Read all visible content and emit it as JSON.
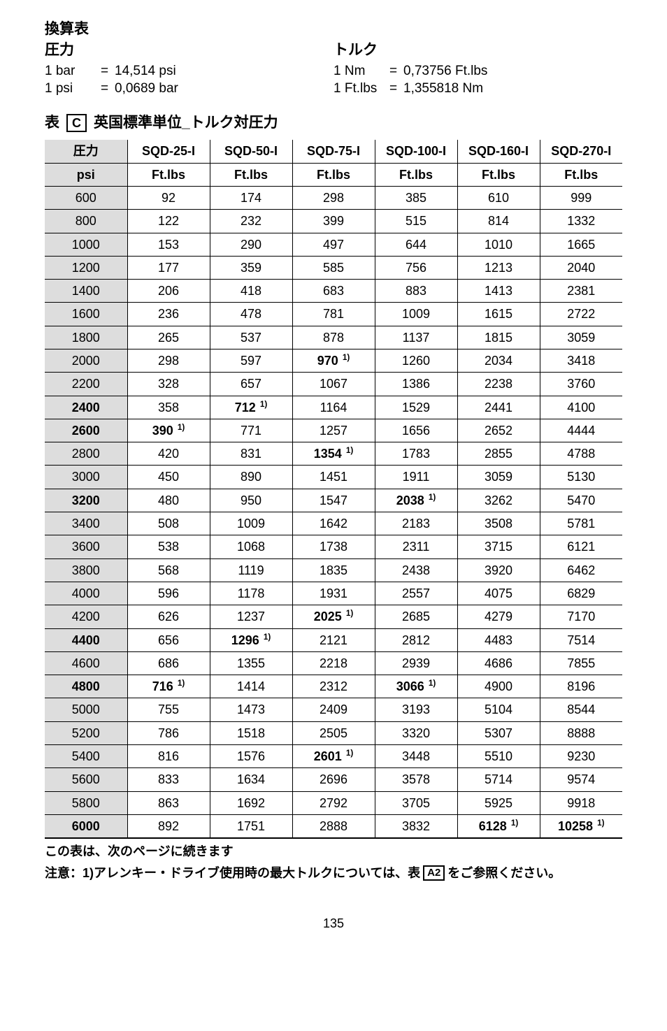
{
  "headings": {
    "conversion_table": "換算表",
    "pressure": "圧力",
    "torque": "トルク"
  },
  "conversions_left": [
    {
      "unit": "1 bar",
      "eq": "=",
      "value": "14,514 psi"
    },
    {
      "unit": "1 psi",
      "eq": "=",
      "value": "0,0689 bar"
    }
  ],
  "conversions_right": [
    {
      "unit": "1 Nm",
      "eq": "=",
      "value": "0,73756 Ft.lbs"
    },
    {
      "unit": "1 Ft.lbs",
      "eq": "=",
      "value": "1,355818 Nm"
    }
  ],
  "table_caption": {
    "prefix": "表",
    "box": "C",
    "suffix": "英国標準単位_トルク対圧力"
  },
  "table": {
    "header1": [
      "圧力",
      "SQD-25-I",
      "SQD-50-I",
      "SQD-75-I",
      "SQD-100-I",
      "SQD-160-I",
      "SQD-270-I"
    ],
    "header2": [
      "psi",
      "Ft.lbs",
      "Ft.lbs",
      "Ft.lbs",
      "Ft.lbs",
      "Ft.lbs",
      "Ft.lbs"
    ],
    "rows": [
      {
        "psi": "600",
        "psi_bold": false,
        "cells": [
          {
            "v": "92"
          },
          {
            "v": "174"
          },
          {
            "v": "298"
          },
          {
            "v": "385"
          },
          {
            "v": "610"
          },
          {
            "v": "999"
          }
        ]
      },
      {
        "psi": "800",
        "psi_bold": false,
        "cells": [
          {
            "v": "122"
          },
          {
            "v": "232"
          },
          {
            "v": "399"
          },
          {
            "v": "515"
          },
          {
            "v": "814"
          },
          {
            "v": "1332"
          }
        ]
      },
      {
        "psi": "1000",
        "psi_bold": false,
        "cells": [
          {
            "v": "153"
          },
          {
            "v": "290"
          },
          {
            "v": "497"
          },
          {
            "v": "644"
          },
          {
            "v": "1010"
          },
          {
            "v": "1665"
          }
        ]
      },
      {
        "psi": "1200",
        "psi_bold": false,
        "cells": [
          {
            "v": "177"
          },
          {
            "v": "359"
          },
          {
            "v": "585"
          },
          {
            "v": "756"
          },
          {
            "v": "1213"
          },
          {
            "v": "2040"
          }
        ]
      },
      {
        "psi": "1400",
        "psi_bold": false,
        "cells": [
          {
            "v": "206"
          },
          {
            "v": "418"
          },
          {
            "v": "683"
          },
          {
            "v": "883"
          },
          {
            "v": "1413"
          },
          {
            "v": "2381"
          }
        ]
      },
      {
        "psi": "1600",
        "psi_bold": false,
        "cells": [
          {
            "v": "236"
          },
          {
            "v": "478"
          },
          {
            "v": "781"
          },
          {
            "v": "1009"
          },
          {
            "v": "1615"
          },
          {
            "v": "2722"
          }
        ]
      },
      {
        "psi": "1800",
        "psi_bold": false,
        "cells": [
          {
            "v": "265"
          },
          {
            "v": "537"
          },
          {
            "v": "878"
          },
          {
            "v": "1137"
          },
          {
            "v": "1815"
          },
          {
            "v": "3059"
          }
        ]
      },
      {
        "psi": "2000",
        "psi_bold": false,
        "cells": [
          {
            "v": "298"
          },
          {
            "v": "597"
          },
          {
            "v": "970",
            "m": true
          },
          {
            "v": "1260"
          },
          {
            "v": "2034"
          },
          {
            "v": "3418"
          }
        ]
      },
      {
        "psi": "2200",
        "psi_bold": false,
        "cells": [
          {
            "v": "328"
          },
          {
            "v": "657"
          },
          {
            "v": "1067"
          },
          {
            "v": "1386"
          },
          {
            "v": "2238"
          },
          {
            "v": "3760"
          }
        ]
      },
      {
        "psi": "2400",
        "psi_bold": true,
        "cells": [
          {
            "v": "358"
          },
          {
            "v": "712",
            "m": true
          },
          {
            "v": "1164"
          },
          {
            "v": "1529"
          },
          {
            "v": "2441"
          },
          {
            "v": "4100"
          }
        ]
      },
      {
        "psi": "2600",
        "psi_bold": true,
        "cells": [
          {
            "v": "390",
            "m": true
          },
          {
            "v": "771"
          },
          {
            "v": "1257"
          },
          {
            "v": "1656"
          },
          {
            "v": "2652"
          },
          {
            "v": "4444"
          }
        ]
      },
      {
        "psi": "2800",
        "psi_bold": false,
        "cells": [
          {
            "v": "420"
          },
          {
            "v": "831"
          },
          {
            "v": "1354",
            "m": true
          },
          {
            "v": "1783"
          },
          {
            "v": "2855"
          },
          {
            "v": "4788"
          }
        ]
      },
      {
        "psi": "3000",
        "psi_bold": false,
        "cells": [
          {
            "v": "450"
          },
          {
            "v": "890"
          },
          {
            "v": "1451"
          },
          {
            "v": "1911"
          },
          {
            "v": "3059"
          },
          {
            "v": "5130"
          }
        ]
      },
      {
        "psi": "3200",
        "psi_bold": true,
        "cells": [
          {
            "v": "480"
          },
          {
            "v": "950"
          },
          {
            "v": "1547"
          },
          {
            "v": "2038",
            "m": true
          },
          {
            "v": "3262"
          },
          {
            "v": "5470"
          }
        ]
      },
      {
        "psi": "3400",
        "psi_bold": false,
        "cells": [
          {
            "v": "508"
          },
          {
            "v": "1009"
          },
          {
            "v": "1642"
          },
          {
            "v": "2183"
          },
          {
            "v": "3508"
          },
          {
            "v": "5781"
          }
        ]
      },
      {
        "psi": "3600",
        "psi_bold": false,
        "cells": [
          {
            "v": "538"
          },
          {
            "v": "1068"
          },
          {
            "v": "1738"
          },
          {
            "v": "2311"
          },
          {
            "v": "3715"
          },
          {
            "v": "6121"
          }
        ]
      },
      {
        "psi": "3800",
        "psi_bold": false,
        "cells": [
          {
            "v": "568"
          },
          {
            "v": "1119"
          },
          {
            "v": "1835"
          },
          {
            "v": "2438"
          },
          {
            "v": "3920"
          },
          {
            "v": "6462"
          }
        ]
      },
      {
        "psi": "4000",
        "psi_bold": false,
        "cells": [
          {
            "v": "596"
          },
          {
            "v": "1178"
          },
          {
            "v": "1931"
          },
          {
            "v": "2557"
          },
          {
            "v": "4075"
          },
          {
            "v": "6829"
          }
        ]
      },
      {
        "psi": "4200",
        "psi_bold": false,
        "cells": [
          {
            "v": "626"
          },
          {
            "v": "1237"
          },
          {
            "v": "2025",
            "m": true
          },
          {
            "v": "2685"
          },
          {
            "v": "4279"
          },
          {
            "v": "7170"
          }
        ]
      },
      {
        "psi": "4400",
        "psi_bold": true,
        "cells": [
          {
            "v": "656"
          },
          {
            "v": "1296",
            "m": true
          },
          {
            "v": "2121"
          },
          {
            "v": "2812"
          },
          {
            "v": "4483"
          },
          {
            "v": "7514"
          }
        ]
      },
      {
        "psi": "4600",
        "psi_bold": false,
        "cells": [
          {
            "v": "686"
          },
          {
            "v": "1355"
          },
          {
            "v": "2218"
          },
          {
            "v": "2939"
          },
          {
            "v": "4686"
          },
          {
            "v": "7855"
          }
        ]
      },
      {
        "psi": "4800",
        "psi_bold": true,
        "cells": [
          {
            "v": "716",
            "m": true
          },
          {
            "v": "1414"
          },
          {
            "v": "2312"
          },
          {
            "v": "3066",
            "m": true
          },
          {
            "v": "4900"
          },
          {
            "v": "8196"
          }
        ]
      },
      {
        "psi": "5000",
        "psi_bold": false,
        "cells": [
          {
            "v": "755"
          },
          {
            "v": "1473"
          },
          {
            "v": "2409"
          },
          {
            "v": "3193"
          },
          {
            "v": "5104"
          },
          {
            "v": "8544"
          }
        ]
      },
      {
        "psi": "5200",
        "psi_bold": false,
        "cells": [
          {
            "v": "786"
          },
          {
            "v": "1518"
          },
          {
            "v": "2505"
          },
          {
            "v": "3320"
          },
          {
            "v": "5307"
          },
          {
            "v": "8888"
          }
        ]
      },
      {
        "psi": "5400",
        "psi_bold": false,
        "cells": [
          {
            "v": "816"
          },
          {
            "v": "1576"
          },
          {
            "v": "2601",
            "m": true
          },
          {
            "v": "3448"
          },
          {
            "v": "5510"
          },
          {
            "v": "9230"
          }
        ]
      },
      {
        "psi": "5600",
        "psi_bold": false,
        "cells": [
          {
            "v": "833"
          },
          {
            "v": "1634"
          },
          {
            "v": "2696"
          },
          {
            "v": "3578"
          },
          {
            "v": "5714"
          },
          {
            "v": "9574"
          }
        ]
      },
      {
        "psi": "5800",
        "psi_bold": false,
        "cells": [
          {
            "v": "863"
          },
          {
            "v": "1692"
          },
          {
            "v": "2792"
          },
          {
            "v": "3705"
          },
          {
            "v": "5925"
          },
          {
            "v": "9918"
          }
        ]
      },
      {
        "psi": "6000",
        "psi_bold": true,
        "cells": [
          {
            "v": "892"
          },
          {
            "v": "1751"
          },
          {
            "v": "2888"
          },
          {
            "v": "3832"
          },
          {
            "v": "6128",
            "m": true
          },
          {
            "v": "10258",
            "m": true
          }
        ]
      }
    ],
    "mark_sup": "1)"
  },
  "after_table": "この表は、次のページに続きます",
  "footnote": {
    "prefix": "注意：1)アレンキー・ドライブ使用時の最大トルクについては、表",
    "box": "A2",
    "suffix": "をご参照ください。"
  },
  "page_number": "135"
}
